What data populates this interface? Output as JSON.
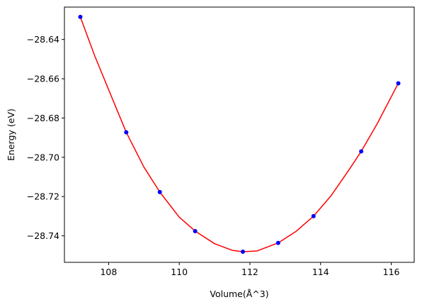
{
  "chart_data": {
    "type": "scatter",
    "title": "",
    "xlabel": "Volume(Å^3)",
    "ylabel": "Energy (eV)",
    "xlim": [
      106.75,
      116.65
    ],
    "ylim": [
      -28.7535,
      -28.6235
    ],
    "x_ticks": [
      108,
      110,
      112,
      114,
      116
    ],
    "x_tick_labels": [
      "108",
      "110",
      "112",
      "114",
      "116"
    ],
    "y_ticks": [
      -28.64,
      -28.66,
      -28.68,
      -28.7,
      -28.72,
      -28.74
    ],
    "y_tick_labels": [
      "−28.64",
      "−28.66",
      "−28.68",
      "−28.70",
      "−28.72",
      "−28.74"
    ],
    "grid": false,
    "series": [
      {
        "kind": "points",
        "color": "#0000ff",
        "x": [
          107.2,
          108.5,
          109.45,
          110.45,
          111.8,
          112.8,
          113.8,
          115.15,
          116.2
        ],
        "y": [
          -28.6285,
          -28.6873,
          -28.7177,
          -28.7376,
          -28.7481,
          -28.7436,
          -28.73,
          -28.697,
          -28.6623
        ]
      },
      {
        "kind": "fit-curve",
        "color": "#ff0000",
        "x": [
          107.2,
          107.6,
          108.0,
          108.5,
          109.0,
          109.45,
          110.0,
          110.45,
          111.0,
          111.5,
          111.8,
          112.2,
          112.8,
          113.3,
          113.8,
          114.3,
          114.8,
          115.15,
          115.6,
          116.2
        ],
        "y": [
          -28.6285,
          -28.648,
          -28.6655,
          -28.6873,
          -28.705,
          -28.7177,
          -28.7305,
          -28.7376,
          -28.744,
          -28.7474,
          -28.7481,
          -28.7477,
          -28.7436,
          -28.7378,
          -28.73,
          -28.7195,
          -28.7065,
          -28.697,
          -28.683,
          -28.6623
        ]
      }
    ]
  }
}
